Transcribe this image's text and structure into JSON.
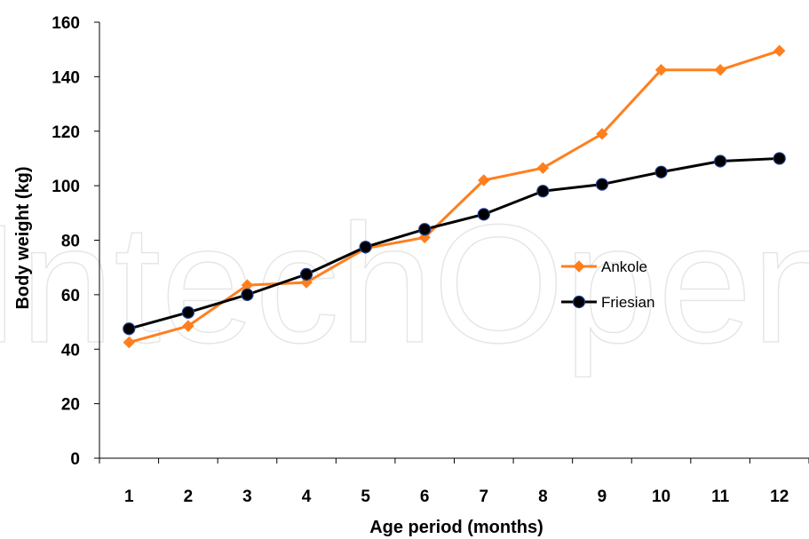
{
  "watermark": "IntechOpen",
  "chart_data": {
    "type": "line",
    "xlabel": "Age period (months)",
    "ylabel": "Body weight (kg)",
    "ylim": [
      0,
      160
    ],
    "yticks": [
      0,
      20,
      40,
      60,
      80,
      100,
      120,
      140,
      160
    ],
    "categories": [
      "1",
      "2",
      "3",
      "4",
      "5",
      "6",
      "7",
      "8",
      "9",
      "10",
      "11",
      "12"
    ],
    "grid": false,
    "legend_position": "right",
    "series": [
      {
        "name": "Ankole",
        "color": "#FF7F1E",
        "marker": "diamond",
        "values": [
          42.5,
          48.5,
          63.5,
          64.5,
          77,
          81,
          102,
          106.5,
          119,
          142.5,
          142.5,
          149.5
        ]
      },
      {
        "name": "Friesian",
        "color": "#000000",
        "marker": "circle",
        "values": [
          47.5,
          53.5,
          60,
          67.5,
          77.5,
          84,
          89.5,
          98,
          100.5,
          105,
          109,
          110
        ]
      }
    ]
  }
}
